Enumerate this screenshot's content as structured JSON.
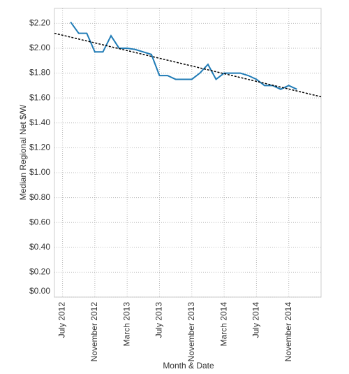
{
  "chart_data": {
    "type": "line",
    "y_label": "Median Regional Net $/W",
    "x_label": "Month & Date",
    "x": [
      "2012-08",
      "2012-09",
      "2012-10",
      "2012-11",
      "2012-12",
      "2013-01",
      "2013-02",
      "2013-03",
      "2013-04",
      "2013-05",
      "2013-06",
      "2013-07",
      "2013-08",
      "2013-09",
      "2013-10",
      "2013-11",
      "2013-12",
      "2014-01",
      "2014-02",
      "2014-03",
      "2014-04",
      "2014-05",
      "2014-06",
      "2014-07",
      "2014-08",
      "2014-09",
      "2014-10",
      "2014-11",
      "2014-12"
    ],
    "series": [
      {
        "color": "#1f7bb6",
        "values": [
          2.21,
          2.12,
          2.12,
          1.97,
          1.97,
          2.1,
          2.0,
          2.0,
          1.99,
          1.97,
          1.95,
          1.78,
          1.78,
          1.75,
          1.75,
          1.75,
          1.8,
          1.87,
          1.75,
          1.8,
          1.8,
          1.8,
          1.78,
          1.75,
          1.7,
          1.7,
          1.67,
          1.7,
          1.67
        ]
      }
    ],
    "trendline": {
      "color": "#000000",
      "values": [
        2.12,
        1.61
      ]
    },
    "xlim": [
      "2012-06",
      "2015-03"
    ],
    "xticks": [
      {
        "value": "2012-07",
        "label": "July 2012"
      },
      {
        "value": "2012-11",
        "label": "November 2012"
      },
      {
        "value": "2013-03",
        "label": "March 2013"
      },
      {
        "value": "2013-07",
        "label": "July 2013"
      },
      {
        "value": "2013-11",
        "label": "November 2013"
      },
      {
        "value": "2014-03",
        "label": "March 2014"
      },
      {
        "value": "2014-07",
        "label": "July 2014"
      },
      {
        "value": "2014-11",
        "label": "November 2014"
      }
    ],
    "ylim": [
      0,
      2.32
    ],
    "yticks": [
      {
        "value": 0,
        "label": "$0.00"
      },
      {
        "value": 0.2,
        "label": "$0.20"
      },
      {
        "value": 0.4,
        "label": "$0.40"
      },
      {
        "value": 0.6,
        "label": "$0.60"
      },
      {
        "value": 0.8,
        "label": "$0.80"
      },
      {
        "value": 1,
        "label": "$1.00"
      },
      {
        "value": 1.2,
        "label": "$1.20"
      },
      {
        "value": 1.4,
        "label": "$1.40"
      },
      {
        "value": 1.6,
        "label": "$1.60"
      },
      {
        "value": 1.8,
        "label": "$1.80"
      },
      {
        "value": 2,
        "label": "$2.00"
      },
      {
        "value": 2.2,
        "label": "$2.20"
      }
    ],
    "grid": true
  }
}
